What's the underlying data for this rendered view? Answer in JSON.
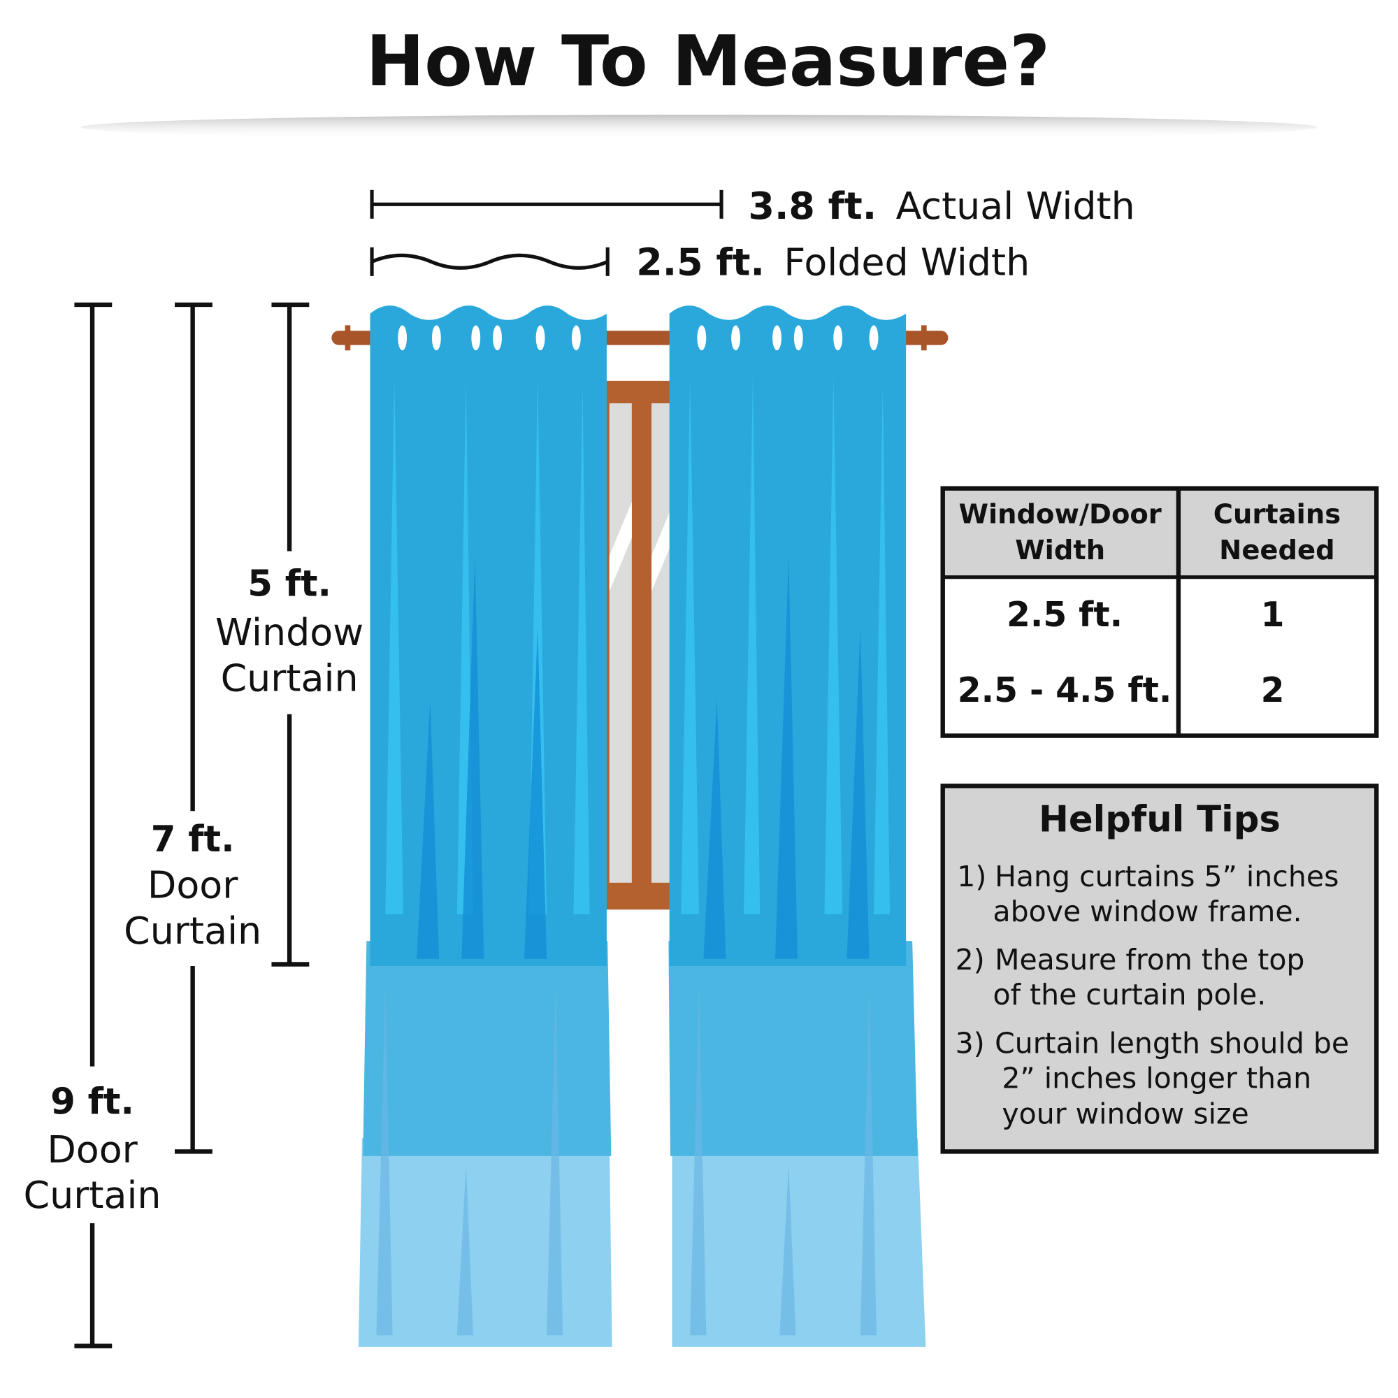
{
  "title": "How To Measure?",
  "widths": {
    "actual": {
      "value": "3.8 ft.",
      "label": "Actual Width"
    },
    "folded": {
      "value": "2.5 ft.",
      "label": "Folded Width"
    }
  },
  "heights": [
    {
      "value": "5 ft.",
      "line1": "Window",
      "line2": "Curtain"
    },
    {
      "value": "7 ft.",
      "line1": "Door",
      "line2": "Curtain"
    },
    {
      "value": "9 ft.",
      "line1": "Door",
      "line2": "Curtain"
    }
  ],
  "table": {
    "headers": [
      [
        "Window/Door",
        "Width"
      ],
      [
        "Curtains",
        "Needed"
      ]
    ],
    "rows": [
      [
        "2.5 ft.",
        "1"
      ],
      [
        "2.5 - 4.5 ft.",
        "2"
      ]
    ]
  },
  "tips": {
    "title": "Helpful Tips",
    "items": [
      {
        "num": "1)",
        "lines": [
          "Hang curtains 5” inches",
          "above window frame."
        ]
      },
      {
        "num": "2)",
        "lines": [
          "Measure from the top",
          "of the curtain pole."
        ]
      },
      {
        "num": "3)",
        "lines": [
          "Curtain length should be",
          "2” inches longer than",
          "your window size"
        ]
      }
    ]
  },
  "colors": {
    "curtain_dark": "#2aa8dc",
    "curtain_mid": "#4cb6e2",
    "curtain_light": "#8dd0ef",
    "rod": "#a9552a",
    "box_bg": "#d3d3d3"
  }
}
